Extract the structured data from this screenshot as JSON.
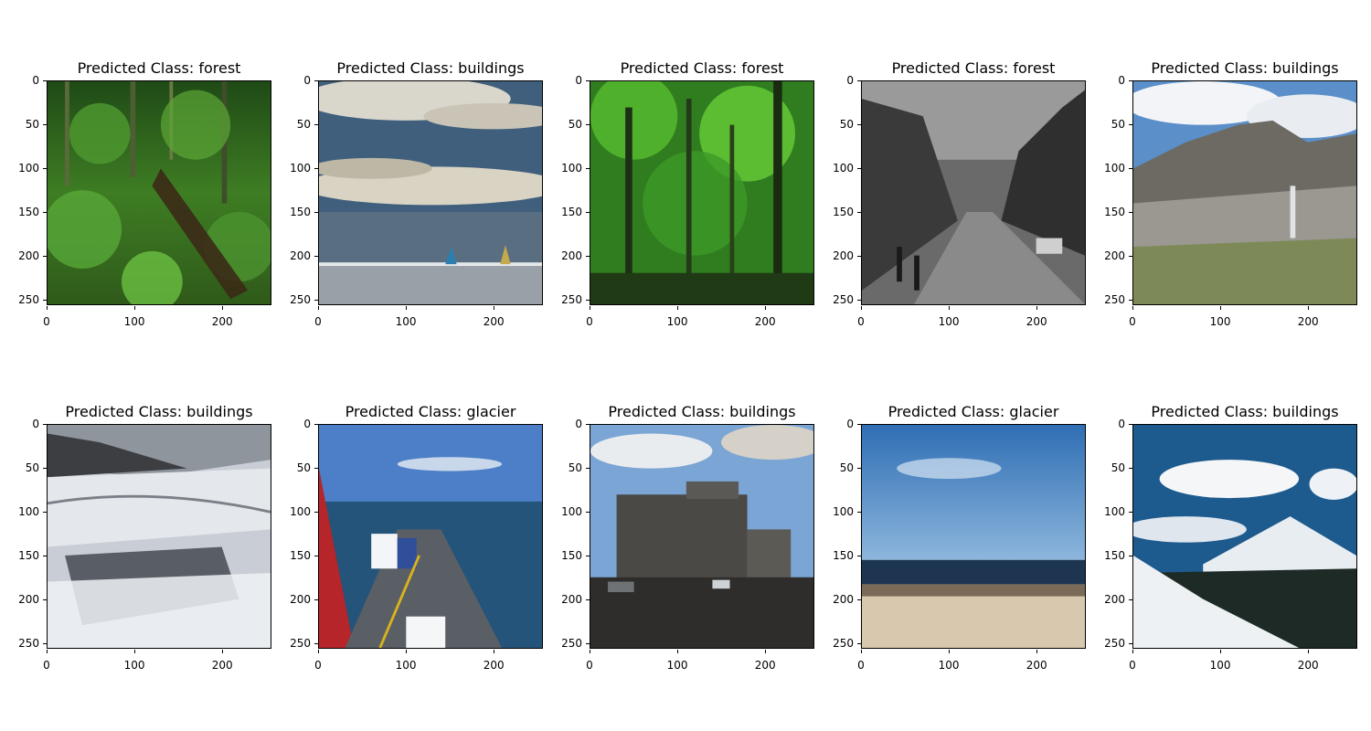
{
  "panels": [
    {
      "title": "Predicted Class: forest",
      "scene": "forest-dense"
    },
    {
      "title": "Predicted Class: buildings",
      "scene": "sea-sailboats"
    },
    {
      "title": "Predicted Class: forest",
      "scene": "forest-tall"
    },
    {
      "title": "Predicted Class: forest",
      "scene": "street-bw"
    },
    {
      "title": "Predicted Class: buildings",
      "scene": "mountain-cliff"
    },
    {
      "title": "Predicted Class: buildings",
      "scene": "glacier-ice"
    },
    {
      "title": "Predicted Class: glacier",
      "scene": "ferry-sea"
    },
    {
      "title": "Predicted Class: buildings",
      "scene": "apartment-block"
    },
    {
      "title": "Predicted Class: glacier",
      "scene": "beach-sky"
    },
    {
      "title": "Predicted Class: buildings",
      "scene": "snow-mountain"
    }
  ],
  "axis": {
    "y_ticks": [
      "0",
      "50",
      "100",
      "150",
      "200",
      "250"
    ],
    "x_ticks": [
      "0",
      "100",
      "200"
    ]
  }
}
